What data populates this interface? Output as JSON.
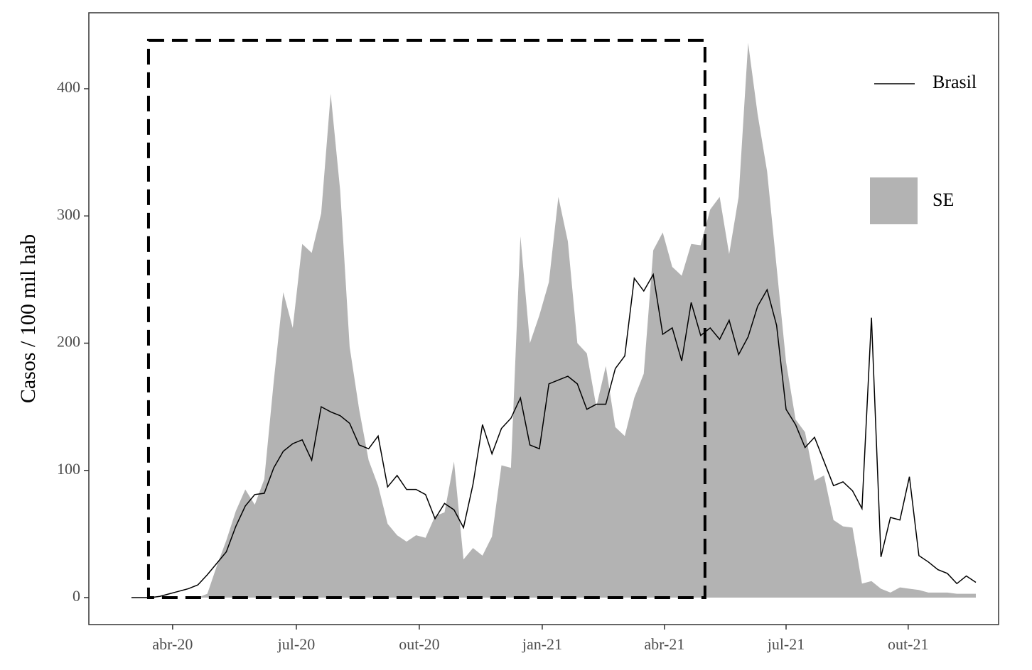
{
  "chart_data": {
    "type": "area-line",
    "ylabel": "Casos / 100 mil hab",
    "categories": [
      null,
      null,
      null,
      null,
      null,
      null,
      null,
      null,
      null,
      null,
      null,
      null,
      null,
      null,
      null,
      null,
      null,
      null,
      null,
      null,
      null,
      null,
      null,
      null,
      null,
      null,
      null,
      null,
      null,
      null,
      null,
      null,
      null,
      null,
      null,
      null,
      null,
      null,
      null,
      null,
      null,
      null,
      null,
      null,
      null,
      null,
      null,
      null,
      null,
      null,
      null,
      null,
      null,
      null,
      null,
      null,
      null,
      null,
      null,
      null,
      null,
      null,
      null,
      null,
      null,
      null,
      null,
      null,
      null,
      null,
      null,
      null,
      null,
      null,
      null,
      null,
      null,
      null,
      null,
      null,
      null,
      null,
      null,
      null,
      null,
      null,
      null,
      null,
      null,
      null
    ],
    "series": [
      {
        "name": "SE",
        "kind": "area",
        "color": "#b3b3b3",
        "values": [
          0,
          0,
          0,
          0,
          0,
          0,
          0,
          0,
          3,
          25,
          45,
          68,
          85,
          73,
          93,
          170,
          240,
          212,
          278,
          271,
          302,
          396,
          320,
          197,
          148,
          108,
          88,
          58,
          49,
          44,
          49,
          47,
          64,
          67,
          107,
          30,
          39,
          33,
          48,
          104,
          102,
          284,
          200,
          222,
          248,
          315,
          280,
          200,
          192,
          150,
          182,
          134,
          127,
          157,
          176,
          273,
          287,
          260,
          253,
          278,
          277,
          305,
          315,
          270,
          315,
          436,
          380,
          335,
          260,
          185,
          140,
          130,
          92,
          96,
          61,
          56,
          55,
          11,
          13,
          7,
          4,
          8,
          7,
          6,
          4,
          4,
          4,
          3,
          3,
          3
        ]
      },
      {
        "name": "Brasil",
        "kind": "line",
        "color": "#000000",
        "values": [
          0,
          0,
          0,
          1,
          3,
          5,
          7,
          10,
          18,
          27,
          36,
          56,
          72,
          81,
          82,
          102,
          115,
          121,
          124,
          108,
          150,
          146,
          143,
          137,
          120,
          117,
          127,
          87,
          96,
          85,
          85,
          81,
          62,
          74,
          69,
          55,
          89,
          136,
          113,
          133,
          141,
          157,
          120,
          117,
          168,
          171,
          174,
          168,
          148,
          152,
          152,
          180,
          190,
          251,
          241,
          254,
          207,
          212,
          186,
          232,
          206,
          212,
          203,
          218,
          191,
          205,
          229,
          242,
          214,
          148,
          136,
          118,
          126,
          107,
          88,
          91,
          84,
          70,
          220,
          32,
          63,
          61,
          95,
          33,
          28,
          22,
          19,
          11,
          17,
          12
        ]
      }
    ],
    "xlim": [
      -4.49,
      91.4
    ],
    "xticks": [
      {
        "value": 4.34,
        "label": "abr-20"
      },
      {
        "value": 17.38,
        "label": "jul-20"
      },
      {
        "value": 30.34,
        "label": "out-20"
      },
      {
        "value": 43.3,
        "label": "jan-21"
      },
      {
        "value": 56.18,
        "label": "abr-21"
      },
      {
        "value": 69.0,
        "label": "jul-21"
      },
      {
        "value": 81.87,
        "label": "out-21"
      }
    ],
    "ylim": [
      -21.2,
      459.7
    ],
    "yticks": [
      0,
      100,
      200,
      300,
      400
    ],
    "highlight_x": [
      1.8,
      60.45
    ],
    "highlight_y": [
      0,
      438
    ],
    "legend": "top-right"
  }
}
